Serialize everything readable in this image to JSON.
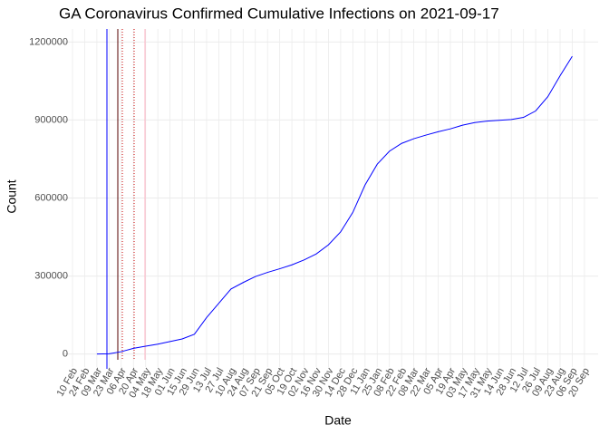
{
  "chart_data": {
    "type": "line",
    "title": "GA Coronavirus Confirmed Cumulative Infections on 2021-09-17",
    "x_label": "Date",
    "y_label": "Count",
    "categories": [
      "10 Feb",
      "24 Feb",
      "09 Mar",
      "23 Mar",
      "06 Apr",
      "20 Apr",
      "04 May",
      "18 May",
      "01 Jun",
      "15 Jun",
      "29 Jun",
      "13 Jul",
      "27 Jul",
      "10 Aug",
      "24 Aug",
      "07 Sep",
      "21 Sep",
      "05 Oct",
      "19 Oct",
      "02 Nov",
      "16 Nov",
      "30 Nov",
      "14 Dec",
      "28 Dec",
      "11 Jan",
      "25 Jan",
      "08 Feb",
      "22 Feb",
      "08 Mar",
      "22 Mar",
      "05 Apr",
      "19 Apr",
      "03 May",
      "17 May",
      "31 May",
      "14 Jun",
      "28 Jun",
      "12 Jul",
      "26 Jul",
      "09 Aug",
      "23 Aug",
      "06 Sep",
      "20 Sep"
    ],
    "series": [
      {
        "name": "Count",
        "color": "#0000ff",
        "values": [
          null,
          null,
          0,
          800,
          9000,
          22000,
          30000,
          38000,
          48000,
          58000,
          76000,
          140000,
          195000,
          250000,
          275000,
          298000,
          314000,
          328000,
          343000,
          362000,
          385000,
          420000,
          470000,
          545000,
          650000,
          730000,
          780000,
          810000,
          828000,
          842000,
          855000,
          866000,
          880000,
          890000,
          896000,
          899000,
          902000,
          910000,
          935000,
          990000,
          1070000,
          1145000,
          null
        ]
      }
    ],
    "ylim": [
      -50000,
      1250000
    ],
    "yticks": [
      0,
      300000,
      600000,
      900000,
      1200000
    ],
    "grid": true
  }
}
